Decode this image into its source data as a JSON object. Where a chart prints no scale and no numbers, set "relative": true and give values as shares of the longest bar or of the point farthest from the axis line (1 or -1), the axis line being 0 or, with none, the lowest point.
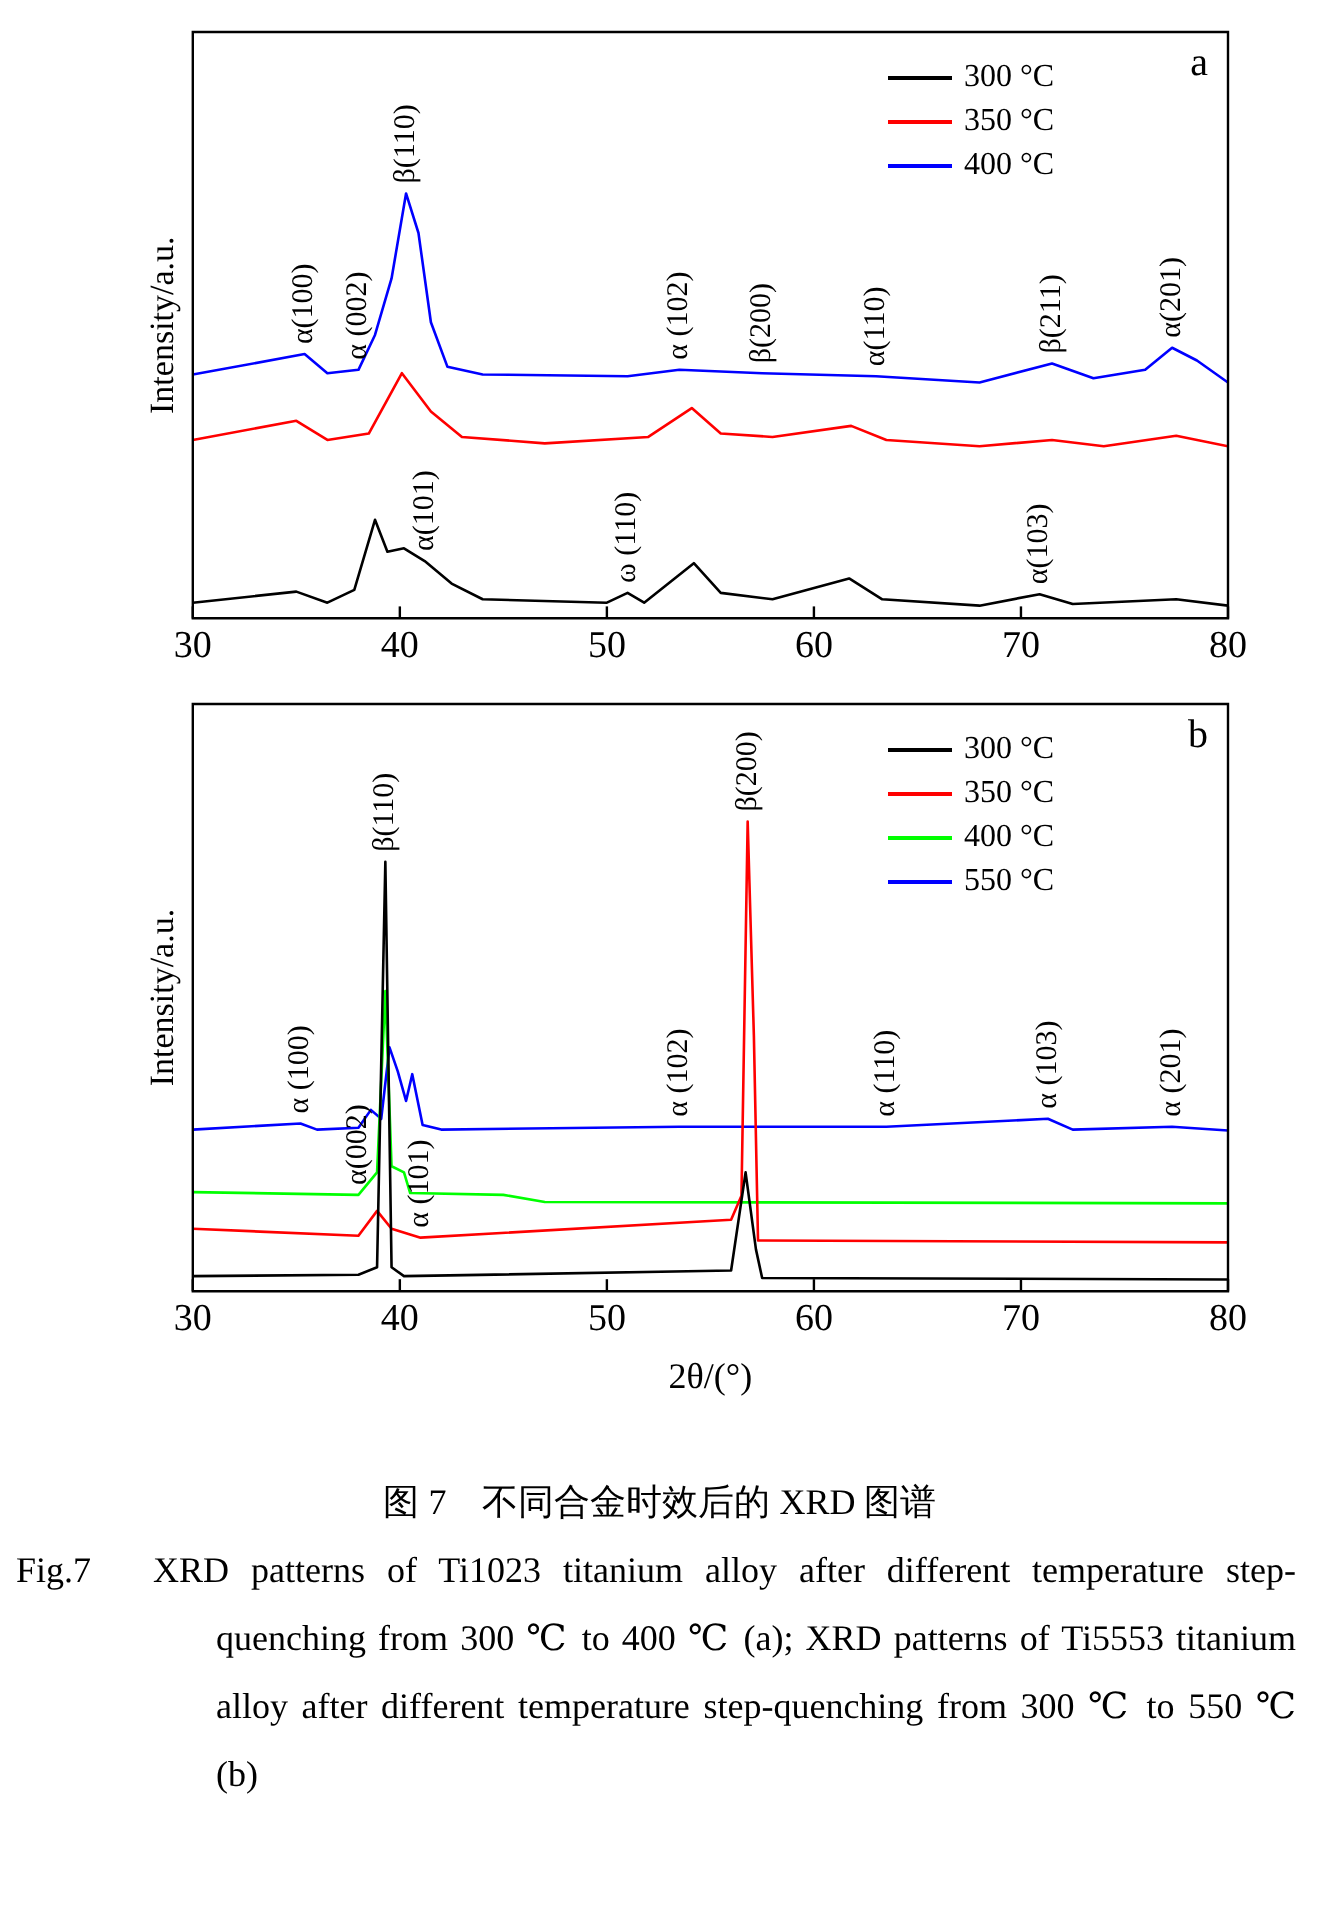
{
  "chart_data": [
    {
      "type": "line",
      "title": "a",
      "ylabel": "Intensity/a.u.",
      "relative": true,
      "xlim": [
        30,
        80
      ],
      "xticks": [
        30,
        40,
        50,
        60,
        70,
        80
      ],
      "tick_labels": "x",
      "grid": false,
      "legend": "top right",
      "marker": "none",
      "line_style": "solid",
      "series": [
        {
          "name": "300 °C",
          "color": "#000000",
          "x": [
            30,
            35,
            36.5,
            37.8,
            38.8,
            39.4,
            40.2,
            41.2,
            42.5,
            44,
            50,
            51,
            51.8,
            54.2,
            55.5,
            58,
            61.7,
            63.3,
            68,
            70.9,
            72.5,
            77.5,
            80
          ],
          "values": [
            0.037,
            0.063,
            0.037,
            0.067,
            0.232,
            0.157,
            0.165,
            0.135,
            0.082,
            0.045,
            0.037,
            0.06,
            0.037,
            0.13,
            0.06,
            0.045,
            0.094,
            0.045,
            0.03,
            0.057,
            0.034,
            0.045,
            0.03
          ]
        },
        {
          "name": "350 °C",
          "color": "#ff0000",
          "x": [
            30,
            35,
            36.5,
            38.5,
            40.1,
            41.5,
            43,
            47,
            52,
            54.1,
            55.5,
            58,
            61.8,
            63.5,
            68,
            71.5,
            74,
            77.5,
            80
          ],
          "values": [
            0.42,
            0.465,
            0.42,
            0.435,
            0.577,
            0.487,
            0.427,
            0.412,
            0.427,
            0.495,
            0.435,
            0.427,
            0.453,
            0.42,
            0.405,
            0.42,
            0.405,
            0.43,
            0.405
          ]
        },
        {
          "name": "400 °C",
          "color": "#0000ff",
          "x": [
            30,
            35.4,
            36.5,
            38,
            38.8,
            39.6,
            40.3,
            40.9,
            41.5,
            42.3,
            44,
            51,
            53.5,
            57.5,
            63,
            68,
            71.5,
            73.5,
            76,
            77.3,
            78.5,
            80
          ],
          "values": [
            0.574,
            0.622,
            0.577,
            0.585,
            0.667,
            0.8,
            1.0,
            0.907,
            0.697,
            0.592,
            0.574,
            0.57,
            0.585,
            0.577,
            0.57,
            0.555,
            0.6,
            0.565,
            0.585,
            0.637,
            0.607,
            0.555
          ]
        }
      ],
      "annotations": [
        {
          "text": "α(100)",
          "x": 35.4,
          "y": 0.622
        },
        {
          "text": "α (002)",
          "x": 38,
          "y": 0.585
        },
        {
          "text": "β(110)",
          "x": 40.3,
          "y": 1.0
        },
        {
          "text": "α (102)",
          "x": 53.5,
          "y": 0.585
        },
        {
          "text": "β(200)",
          "x": 57.5,
          "y": 0.577
        },
        {
          "text": "α(110)",
          "x": 63,
          "y": 0.57
        },
        {
          "text": "β(211)",
          "x": 71.5,
          "y": 0.6
        },
        {
          "text": "α(201)",
          "x": 77.3,
          "y": 0.637
        },
        {
          "text": "α(101)",
          "x": 41.2,
          "y": 0.135
        },
        {
          "text": "ω (110)",
          "x": 51,
          "y": 0.06
        },
        {
          "text": "α(103)",
          "x": 70.9,
          "y": 0.057
        }
      ]
    },
    {
      "type": "line",
      "title": "b",
      "xlabel": "2θ/(°)",
      "ylabel": "Intensity/a.u.",
      "relative": true,
      "xlim": [
        30,
        80
      ],
      "xticks": [
        30,
        40,
        50,
        60,
        70,
        80
      ],
      "tick_labels": "x",
      "grid": false,
      "legend": "top right",
      "marker": "none",
      "line_style": "solid",
      "series": [
        {
          "name": "300 °C",
          "color": "#000000",
          "x": [
            30,
            38,
            38.9,
            39.3,
            39.6,
            40.2,
            56,
            56.7,
            57.2,
            57.5,
            80
          ],
          "values": [
            0.032,
            0.035,
            0.051,
            0.914,
            0.051,
            0.032,
            0.044,
            0.253,
            0.089,
            0.028,
            0.025
          ]
        },
        {
          "name": "350 °C",
          "color": "#ff0000",
          "x": [
            30,
            38,
            38.9,
            39.6,
            41,
            56,
            56.5,
            56.8,
            57.1,
            57.3,
            80
          ],
          "values": [
            0.133,
            0.118,
            0.171,
            0.133,
            0.114,
            0.152,
            0.203,
            1.0,
            0.544,
            0.108,
            0.104
          ]
        },
        {
          "name": "400 °C",
          "color": "#00ff00",
          "x": [
            30,
            38,
            38.9,
            39.3,
            39.6,
            40.2,
            40.5,
            45,
            47,
            80
          ],
          "values": [
            0.211,
            0.205,
            0.253,
            0.639,
            0.266,
            0.253,
            0.209,
            0.205,
            0.19,
            0.187
          ]
        },
        {
          "name": "550 °C",
          "color": "#0000ff",
          "x": [
            30,
            35.2,
            36,
            38,
            38.6,
            39.1,
            39.5,
            39.9,
            40.3,
            40.6,
            41.1,
            42,
            53.5,
            56.6,
            63.5,
            71.3,
            72.5,
            77.3,
            80
          ],
          "values": [
            0.344,
            0.357,
            0.344,
            0.348,
            0.386,
            0.367,
            0.519,
            0.468,
            0.405,
            0.462,
            0.354,
            0.344,
            0.35,
            0.35,
            0.35,
            0.367,
            0.344,
            0.35,
            0.342
          ]
        }
      ],
      "annotations": [
        {
          "text": "α (100)",
          "x": 35.2,
          "y": 0.357
        },
        {
          "text": "β(110)",
          "x": 39.3,
          "y": 0.914
        },
        {
          "text": "α(002)",
          "x": 38,
          "y": 0.205
        },
        {
          "text": "α (101)",
          "x": 41,
          "y": 0.114
        },
        {
          "text": "α (102)",
          "x": 53.5,
          "y": 0.35
        },
        {
          "text": "β(200)",
          "x": 56.8,
          "y": 1.0
        },
        {
          "text": "α (110)",
          "x": 63.5,
          "y": 0.35
        },
        {
          "text": "α (103)",
          "x": 71.3,
          "y": 0.367
        },
        {
          "text": "α (201)",
          "x": 77.3,
          "y": 0.35
        },
        "图 7　不同合金时效后的 XRD 图谱",
        "Fig.7　XRD patterns of Ti1023 titanium alloy after different temperature step-quenching from 300 ℃ to 400 ℃ (a); XRD patterns of Ti5553 titanium alloy after different temperature step-quenching from 300 ℃ to 550 ℃ (b)"
      ]
    }
  ]
}
